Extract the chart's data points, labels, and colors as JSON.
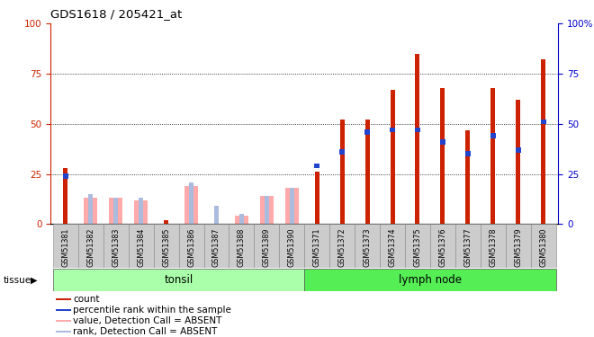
{
  "title": "GDS1618 / 205421_at",
  "samples": [
    "GSM51381",
    "GSM51382",
    "GSM51383",
    "GSM51384",
    "GSM51385",
    "GSM51386",
    "GSM51387",
    "GSM51388",
    "GSM51389",
    "GSM51390",
    "GSM51371",
    "GSM51372",
    "GSM51373",
    "GSM51374",
    "GSM51375",
    "GSM51376",
    "GSM51377",
    "GSM51378",
    "GSM51379",
    "GSM51380"
  ],
  "red_bar_heights": [
    28,
    0,
    0,
    0,
    2,
    0,
    0,
    0,
    0,
    0,
    26,
    52,
    52,
    67,
    85,
    68,
    47,
    68,
    62,
    82
  ],
  "pink_bar_heights": [
    0,
    13,
    13,
    12,
    0,
    19,
    0,
    4,
    14,
    18,
    0,
    0,
    0,
    0,
    0,
    0,
    0,
    0,
    0,
    0
  ],
  "blue_rank_heights": [
    24,
    15,
    13,
    13,
    0,
    21,
    9,
    5,
    14,
    18,
    29,
    36,
    46,
    47,
    47,
    41,
    35,
    44,
    37,
    51
  ],
  "light_blue_bar_heights": [
    0,
    15,
    13,
    13,
    0,
    21,
    9,
    5,
    14,
    18,
    0,
    0,
    0,
    0,
    0,
    0,
    0,
    0,
    0,
    0
  ],
  "tissue_groups": [
    {
      "label": "tonsil",
      "start": 0,
      "end": 10,
      "color": "#aaffaa"
    },
    {
      "label": "lymph node",
      "start": 10,
      "end": 20,
      "color": "#55ee55"
    }
  ],
  "ylim": [
    0,
    100
  ],
  "yticks": [
    0,
    25,
    50,
    75,
    100
  ],
  "bar_color_red": "#cc2200",
  "bar_color_pink": "#ffaaaa",
  "bar_color_blue": "#2244cc",
  "bar_color_lightblue": "#aabbdd",
  "left_tick_color": "#cc2200",
  "right_tick_color": "#0000cc",
  "legend_items": [
    {
      "color": "#cc2200",
      "label": "count"
    },
    {
      "color": "#2244cc",
      "label": "percentile rank within the sample"
    },
    {
      "color": "#ffaaaa",
      "label": "value, Detection Call = ABSENT"
    },
    {
      "color": "#aabbdd",
      "label": "rank, Detection Call = ABSENT"
    }
  ]
}
